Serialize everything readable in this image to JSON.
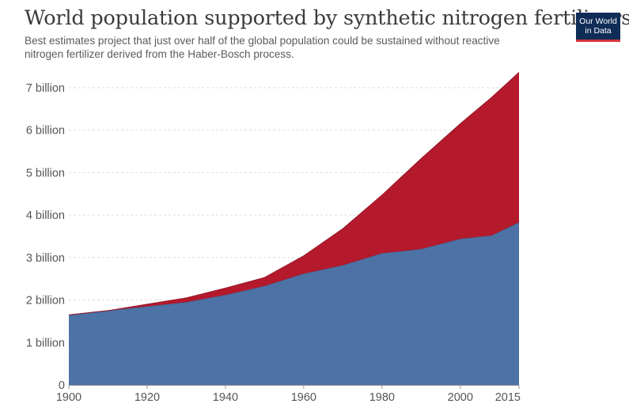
{
  "header": {
    "title": "World population supported by synthetic nitrogen fertilizers",
    "subtitle": "Best estimates project that just over half of the global population could be sustained without reactive nitrogen fertilizer derived from the Haber-Bosch process."
  },
  "logo": {
    "line1": "Our World",
    "line2": "in Data",
    "bg_color": "#0f2d57",
    "accent_color": "#d6363d"
  },
  "chart_data": {
    "type": "area",
    "stacked": true,
    "title": "World population supported by synthetic nitrogen fertilizers",
    "xlabel": "",
    "ylabel": "",
    "x": [
      1900,
      1910,
      1920,
      1930,
      1940,
      1950,
      1960,
      1970,
      1980,
      1990,
      2000,
      2008,
      2015
    ],
    "series": [
      {
        "values": [
          1.65,
          1.75,
          1.85,
          1.95,
          2.12,
          2.33,
          2.62,
          2.82,
          3.1,
          3.2,
          3.44,
          3.52,
          3.83
        ],
        "color": "#4c72a6"
      },
      {
        "values": [
          0.0,
          0.0,
          0.05,
          0.1,
          0.16,
          0.2,
          0.42,
          0.86,
          1.37,
          2.13,
          2.71,
          3.25,
          3.53
        ],
        "color": "#b5192c"
      }
    ],
    "xlim": [
      1900,
      2015
    ],
    "ylim": [
      0,
      7.5
    ],
    "x_ticks": [
      {
        "value": 1900,
        "label": "1900"
      },
      {
        "value": 1920,
        "label": "1920"
      },
      {
        "value": 1940,
        "label": "1940"
      },
      {
        "value": 1960,
        "label": "1960"
      },
      {
        "value": 1980,
        "label": "1980"
      },
      {
        "value": 2000,
        "label": "2000"
      },
      {
        "value": 2015,
        "label": "2015"
      }
    ],
    "y_ticks": [
      {
        "value": 0,
        "label": "0"
      },
      {
        "value": 1,
        "label": "1 billion"
      },
      {
        "value": 2,
        "label": "2 billion"
      },
      {
        "value": 3,
        "label": "3 billion"
      },
      {
        "value": 4,
        "label": "4 billion"
      },
      {
        "value": 5,
        "label": "5 billion"
      },
      {
        "value": 6,
        "label": "6 billion"
      },
      {
        "value": 7,
        "label": "7 billion"
      }
    ],
    "grid": true,
    "legend": "none"
  }
}
